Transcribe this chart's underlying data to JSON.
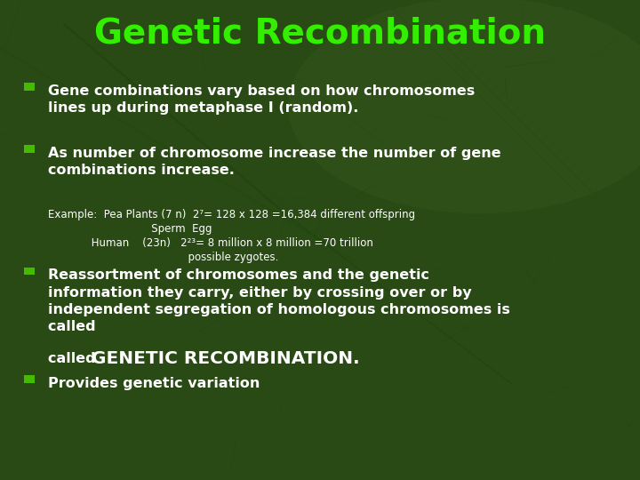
{
  "title": "Genetic Recombination",
  "title_color": "#33ee00",
  "title_fontsize": 28,
  "bg_color": "#2a4a15",
  "text_color": "#ffffff",
  "bullet_square_color": "#44bb00",
  "bullet1": "Gene combinations vary based on how chromosomes\nlines up during metaphase I (random).",
  "bullet2": "As number of chromosome increase the number of gene\ncombinations increase.",
  "example_line1": "Example:  Pea Plants (7 n)  2⁷= 128 x 128 =16,384 different offspring",
  "example_line2": "                               Sperm  Egg",
  "example_line3": "             Human    (23n)   2²³= 8 million x 8 million =70 trillion",
  "example_line4": "                                          possible zygotes.",
  "bullet3_line1": "Reassortment of chromosomes and the genetic",
  "bullet3_line2": "information they carry, either by crossing over or by",
  "bullet3_line3": "independent segregation of homologous chromosomes is",
  "bullet3_line4_pre": "called ",
  "bullet3_line4_bold": "GENETIC RECOMBINATION",
  "bullet3_line4_end": ".",
  "bullet4": "Provides genetic variation",
  "leaf_vein_color": "#1a3a0a",
  "leaf_vein_color2": "#1e4a0c"
}
